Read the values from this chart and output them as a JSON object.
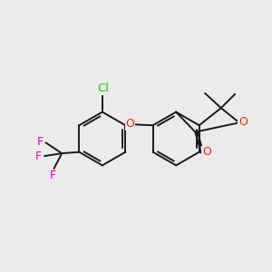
{
  "background_color": "#ebebeb",
  "bond_color": "#1a1a1a",
  "bond_width": 1.4,
  "atom_colors": {
    "Cl": "#22cc00",
    "O": "#ff2200",
    "F": "#dd00cc",
    "C": "#1a1a1a"
  },
  "fig_width": 3.0,
  "fig_height": 3.0,
  "dpi": 100
}
